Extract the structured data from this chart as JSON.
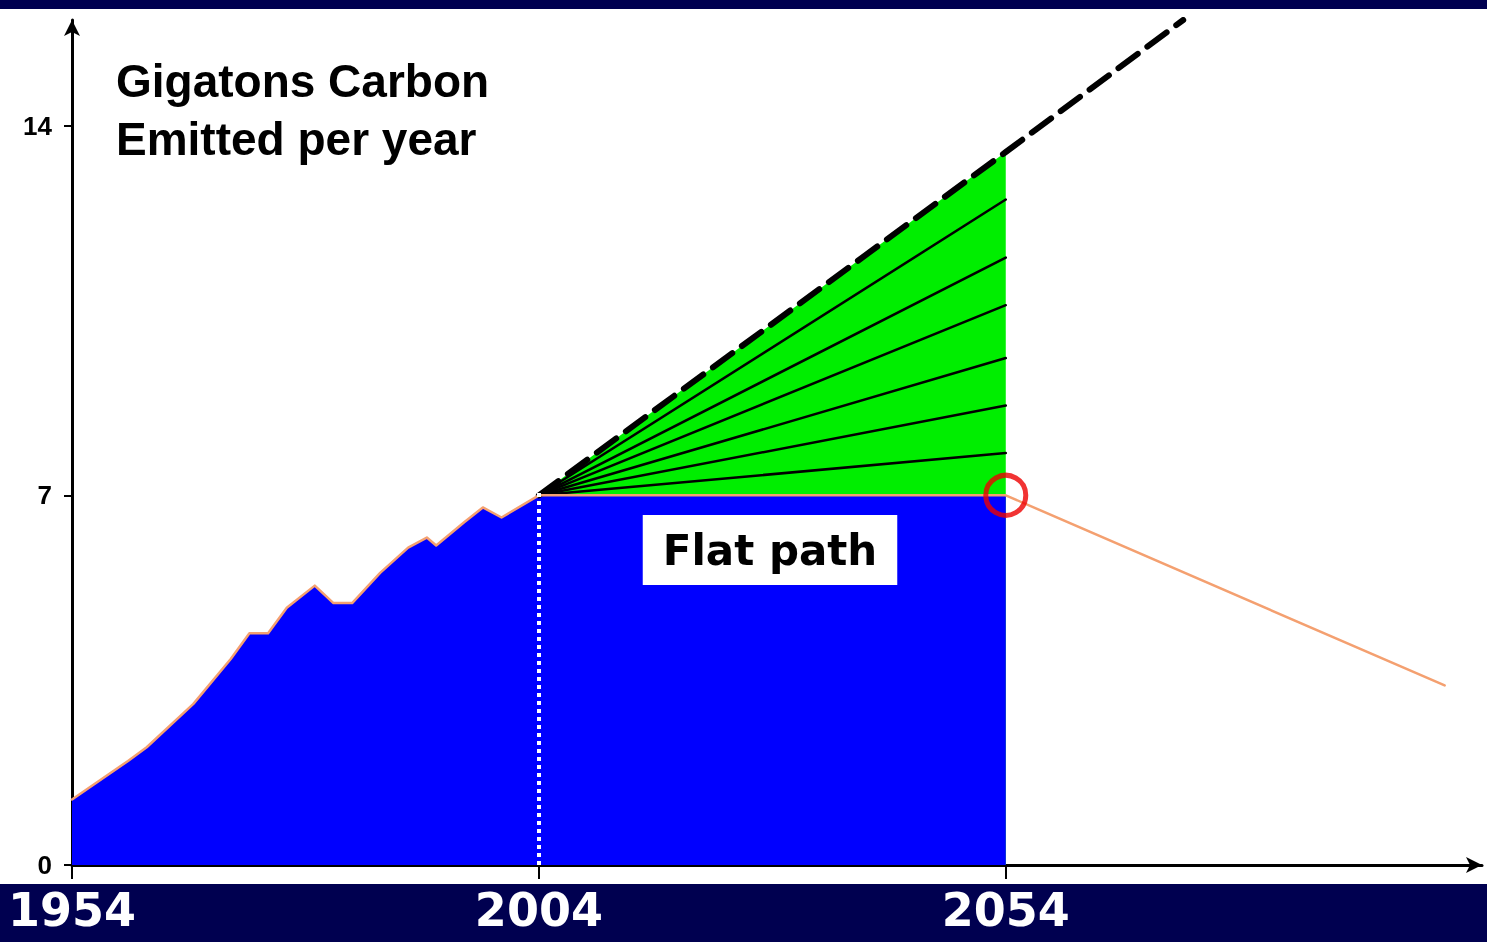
{
  "chart_data": {
    "type": "area",
    "title": "Gigatons Carbon Emitted per year",
    "xlim": [
      1954,
      2105
    ],
    "xticks": [
      1954,
      2004,
      2054
    ],
    "ylim": [
      0,
      16
    ],
    "yticks": [
      0,
      7,
      14
    ],
    "grid": false,
    "series": [
      {
        "color": "#00ee00",
        "x": [
          2004,
          2054
        ],
        "values": [
          7,
          13.5
        ]
      },
      {
        "color": "#0000ff",
        "x": [
          1954,
          1960,
          1962,
          1967,
          1971,
          1973,
          1975,
          1977,
          1980,
          1982,
          1984,
          1987,
          1990,
          1992,
          1993,
          1996,
          1998,
          2000,
          2004,
          2054
        ],
        "values": [
          1.24,
          1.97,
          2.23,
          3.05,
          3.9,
          4.39,
          4.39,
          4.87,
          5.29,
          4.96,
          4.96,
          5.53,
          6.01,
          6.2,
          6.05,
          6.49,
          6.77,
          6.58,
          7,
          7
        ]
      },
      {
        "type": "line",
        "color": "#000000",
        "x": [
          2004,
          2054
        ],
        "values": [
          7,
          12.6
        ]
      },
      {
        "type": "line",
        "color": "#000000",
        "x": [
          2004,
          2054
        ],
        "values": [
          7,
          11.5
        ]
      },
      {
        "type": "line",
        "color": "#000000",
        "x": [
          2004,
          2054
        ],
        "values": [
          7,
          10.6
        ]
      },
      {
        "type": "line",
        "color": "#000000",
        "x": [
          2004,
          2054
        ],
        "values": [
          7,
          9.6
        ]
      },
      {
        "type": "line",
        "color": "#000000",
        "x": [
          2004,
          2054
        ],
        "values": [
          7,
          8.7
        ]
      },
      {
        "type": "line",
        "color": "#000000",
        "x": [
          2004,
          2054
        ],
        "values": [
          7,
          7.8
        ]
      },
      {
        "type": "line",
        "color": "#000000",
        "line_style": "dashed",
        "x": [
          2004,
          2054,
          2073
        ],
        "values": [
          7,
          13.5,
          16
        ]
      },
      {
        "type": "line",
        "color": "#f4a070",
        "x": [
          1954,
          1960,
          1962,
          1967,
          1971,
          1973,
          1975,
          1977,
          1980,
          1982,
          1984,
          1987,
          1990,
          1992,
          1993,
          1996,
          1998,
          2000,
          2004,
          2054,
          2101
        ],
        "values": [
          1.24,
          1.97,
          2.23,
          3.05,
          3.9,
          4.39,
          4.39,
          4.87,
          5.29,
          4.96,
          4.96,
          5.53,
          6.01,
          6.2,
          6.05,
          6.49,
          6.77,
          6.58,
          7,
          7,
          3.4
        ]
      },
      {
        "type": "scatter",
        "color": "#ee0000",
        "marker": "circle",
        "x": [
          2054
        ],
        "values": [
          7
        ]
      }
    ],
    "ref_lines": [
      {
        "axis": "x",
        "value": 2004,
        "color": "#ffffff",
        "line_style": "dotted"
      }
    ],
    "annotations": [
      "Flat path"
    ]
  }
}
